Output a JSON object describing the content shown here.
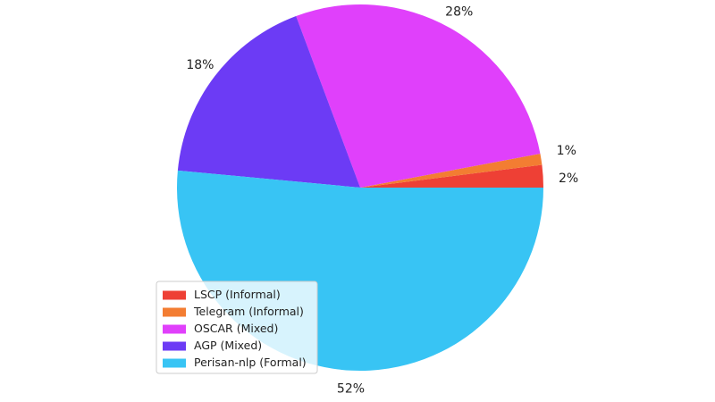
{
  "chart_data": {
    "type": "pie",
    "categories": [
      "LSCP (Informal)",
      "Telegram (Informal)",
      "OSCAR (Mixed)",
      "AGP (Mixed)",
      "Perisan-nlp (Formal)"
    ],
    "values": [
      2,
      1,
      28,
      18,
      52
    ],
    "value_labels": [
      "2%",
      "1%",
      "28%",
      "18%",
      "52%"
    ],
    "colors": [
      "#ee4035",
      "#f37d32",
      "#e040fb",
      "#6c3bf5",
      "#38c4f4"
    ],
    "legend": "lower left"
  }
}
